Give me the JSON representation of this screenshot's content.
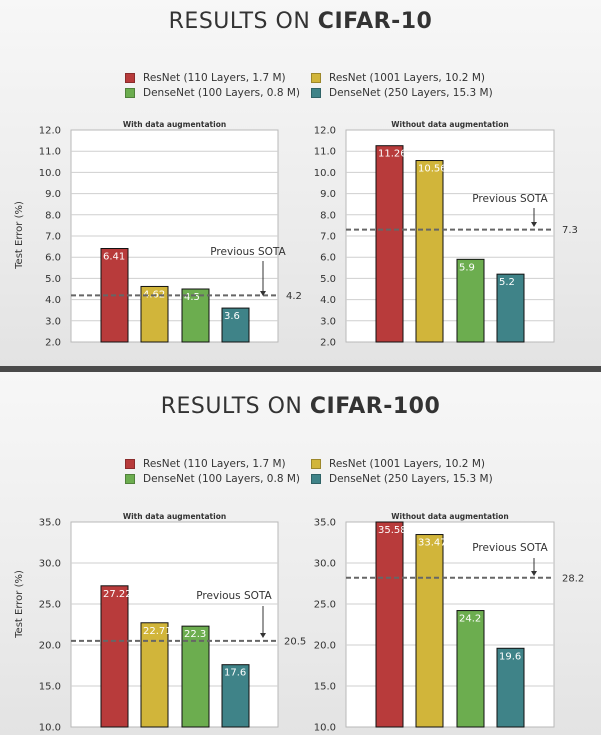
{
  "colors": {
    "resnet110": "#b83b3b",
    "resnet1001": "#d1b53a",
    "densenet100": "#6cad4f",
    "densenet250": "#3f8388",
    "sota_line": "#666666"
  },
  "slides": [
    {
      "title_prefix": "RESULTS ON ",
      "title_bold": "CIFAR-10",
      "legend": [
        {
          "label": "ResNet (110 Layers, 1.7 M)",
          "color_key": "resnet110"
        },
        {
          "label": "ResNet (1001 Layers, 10.2 M)",
          "color_key": "resnet1001"
        },
        {
          "label": "DenseNet (100 Layers, 0.8 M)",
          "color_key": "densenet100"
        },
        {
          "label": "DenseNet (250 Layers, 15.3 M)",
          "color_key": "densenet250"
        }
      ],
      "ylabel": "Test Error (%)"
    },
    {
      "title_prefix": "RESULTS ON ",
      "title_bold": "CIFAR-100",
      "legend": [
        {
          "label": "ResNet (110 Layers, 1.7 M)",
          "color_key": "resnet110"
        },
        {
          "label": "ResNet (1001 Layers, 10.2 M)",
          "color_key": "resnet1001"
        },
        {
          "label": "DenseNet (100 Layers, 0.8 M)",
          "color_key": "densenet100"
        },
        {
          "label": "DenseNet (250 Layers, 15.3 M)",
          "color_key": "densenet250"
        }
      ],
      "ylabel": "Test Error (%)"
    }
  ],
  "chart_data": [
    {
      "type": "bar",
      "title": "With data augmentation",
      "ylabel": "Test Error (%)",
      "ylim": [
        2.0,
        12.0
      ],
      "yticks": [
        "2.0",
        "3.0",
        "4.0",
        "5.0",
        "6.0",
        "7.0",
        "8.0",
        "9.0",
        "10.0",
        "11.0",
        "12.0"
      ],
      "grid": true,
      "series": [
        {
          "name": "ResNet (110 Layers, 1.7 M)",
          "value": 6.41,
          "label": "6.41",
          "color_key": "resnet110"
        },
        {
          "name": "ResNet (1001 Layers, 10.2 M)",
          "value": 4.62,
          "label": "4.62",
          "color_key": "resnet1001"
        },
        {
          "name": "DenseNet (100 Layers, 0.8 M)",
          "value": 4.5,
          "label": "4.5",
          "color_key": "densenet100"
        },
        {
          "name": "DenseNet (250 Layers, 15.3 M)",
          "value": 3.6,
          "label": "3.6",
          "color_key": "densenet250"
        }
      ],
      "reference_line": {
        "value": 4.2,
        "label": "4.2",
        "annotation": "Previous SOTA"
      }
    },
    {
      "type": "bar",
      "title": "Without data augmentation",
      "ylabel": "",
      "ylim": [
        2.0,
        12.0
      ],
      "yticks": [
        "2.0",
        "3.0",
        "4.0",
        "5.0",
        "6.0",
        "7.0",
        "8.0",
        "9.0",
        "10.0",
        "11.0",
        "12.0"
      ],
      "grid": true,
      "series": [
        {
          "name": "ResNet (110 Layers, 1.7 M)",
          "value": 11.26,
          "label": "11.26",
          "color_key": "resnet110"
        },
        {
          "name": "ResNet (1001 Layers, 10.2 M)",
          "value": 10.56,
          "label": "10.56",
          "color_key": "resnet1001"
        },
        {
          "name": "DenseNet (100 Layers, 0.8 M)",
          "value": 5.9,
          "label": "5.9",
          "color_key": "densenet100"
        },
        {
          "name": "DenseNet (250 Layers, 15.3 M)",
          "value": 5.2,
          "label": "5.2",
          "color_key": "densenet250"
        }
      ],
      "reference_line": {
        "value": 7.3,
        "label": "7.3",
        "annotation": "Previous SOTA"
      }
    },
    {
      "type": "bar",
      "title": "With data augmentation",
      "ylabel": "Test Error (%)",
      "ylim": [
        10.0,
        35.0
      ],
      "yticks": [
        "10.0",
        "15.0",
        "20.0",
        "25.0",
        "30.0",
        "35.0"
      ],
      "grid": true,
      "series": [
        {
          "name": "ResNet (110 Layers, 1.7 M)",
          "value": 27.22,
          "label": "27.22",
          "color_key": "resnet110"
        },
        {
          "name": "ResNet (1001 Layers, 10.2 M)",
          "value": 22.71,
          "label": "22.71",
          "color_key": "resnet1001"
        },
        {
          "name": "DenseNet (100 Layers, 0.8 M)",
          "value": 22.3,
          "label": "22.3",
          "color_key": "densenet100"
        },
        {
          "name": "DenseNet (250 Layers, 15.3 M)",
          "value": 17.6,
          "label": "17.6",
          "color_key": "densenet250"
        }
      ],
      "reference_line": {
        "value": 20.5,
        "label": "20.5",
        "annotation": "Previous SOTA"
      }
    },
    {
      "type": "bar",
      "title": "Without data augmentation",
      "ylabel": "",
      "ylim": [
        10.0,
        35.0
      ],
      "yticks": [
        "10.0",
        "15.0",
        "20.0",
        "25.0",
        "30.0",
        "35.0"
      ],
      "grid": true,
      "series": [
        {
          "name": "ResNet (110 Layers, 1.7 M)",
          "value": 35.58,
          "label": "35.58",
          "color_key": "resnet110"
        },
        {
          "name": "ResNet (1001 Layers, 10.2 M)",
          "value": 33.47,
          "label": "33.47",
          "color_key": "resnet1001"
        },
        {
          "name": "DenseNet (100 Layers, 0.8 M)",
          "value": 24.2,
          "label": "24.2",
          "color_key": "densenet100"
        },
        {
          "name": "DenseNet (250 Layers, 15.3 M)",
          "value": 19.6,
          "label": "19.6",
          "color_key": "densenet250"
        }
      ],
      "reference_line": {
        "value": 28.2,
        "label": "28.2",
        "annotation": "Previous SOTA"
      }
    }
  ]
}
